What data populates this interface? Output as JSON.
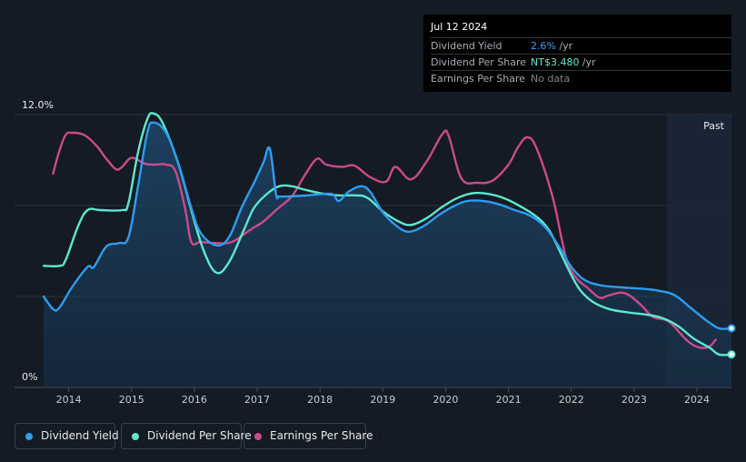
{
  "tooltip": {
    "date": "Jul 12 2024",
    "rows": [
      {
        "label": "Dividend Yield",
        "value": "2.6%",
        "unit": " /yr",
        "color": "#3aa0e8"
      },
      {
        "label": "Dividend Per Share",
        "value": "NT$3.480",
        "unit": " /yr",
        "color": "#5de8cf"
      },
      {
        "label": "Earnings Per Share",
        "value": "No data",
        "unit": "",
        "color": "#7f868e"
      }
    ]
  },
  "legend": [
    {
      "label": "Dividend Yield",
      "color": "#2d9df0"
    },
    {
      "label": "Dividend Per Share",
      "color": "#5de8cf"
    },
    {
      "label": "Earnings Per Share",
      "color": "#cb4a8a"
    }
  ],
  "chart_data": {
    "type": "line",
    "y_top_label": "12.0%",
    "y_bottom_label": "0%",
    "ylim": [
      0,
      12
    ],
    "xlim": [
      2013.6,
      2024.55
    ],
    "past_label": "Past",
    "past_start": 2023.52,
    "grid": true,
    "x_ticks": [
      "2014",
      "2015",
      "2016",
      "2017",
      "2018",
      "2019",
      "2020",
      "2021",
      "2022",
      "2023",
      "2024"
    ],
    "series": [
      {
        "name": "Dividend Yield",
        "color": "#2d9df0",
        "filled": true,
        "points": [
          [
            2013.6,
            4.0
          ],
          [
            2013.75,
            3.45
          ],
          [
            2013.85,
            3.5
          ],
          [
            2014.05,
            4.4
          ],
          [
            2014.3,
            5.3
          ],
          [
            2014.4,
            5.3
          ],
          [
            2014.6,
            6.2
          ],
          [
            2014.8,
            6.35
          ],
          [
            2014.95,
            6.6
          ],
          [
            2015.1,
            8.8
          ],
          [
            2015.25,
            11.2
          ],
          [
            2015.35,
            11.65
          ],
          [
            2015.55,
            11.2
          ],
          [
            2015.75,
            9.8
          ],
          [
            2015.95,
            7.9
          ],
          [
            2016.1,
            6.8
          ],
          [
            2016.35,
            6.25
          ],
          [
            2016.55,
            6.6
          ],
          [
            2016.75,
            7.9
          ],
          [
            2016.95,
            9.0
          ],
          [
            2017.1,
            9.9
          ],
          [
            2017.2,
            10.5
          ],
          [
            2017.3,
            8.5
          ],
          [
            2017.35,
            8.4
          ],
          [
            2017.5,
            8.4
          ],
          [
            2017.8,
            8.45
          ],
          [
            2018.0,
            8.5
          ],
          [
            2018.2,
            8.5
          ],
          [
            2018.3,
            8.2
          ],
          [
            2018.45,
            8.6
          ],
          [
            2018.65,
            8.85
          ],
          [
            2018.8,
            8.6
          ],
          [
            2019.0,
            7.7
          ],
          [
            2019.2,
            7.15
          ],
          [
            2019.4,
            6.85
          ],
          [
            2019.65,
            7.1
          ],
          [
            2019.9,
            7.6
          ],
          [
            2020.15,
            8.0
          ],
          [
            2020.35,
            8.2
          ],
          [
            2020.6,
            8.2
          ],
          [
            2020.85,
            8.05
          ],
          [
            2021.1,
            7.8
          ],
          [
            2021.35,
            7.55
          ],
          [
            2021.6,
            7.0
          ],
          [
            2021.85,
            6.0
          ],
          [
            2022.0,
            5.3
          ],
          [
            2022.2,
            4.75
          ],
          [
            2022.45,
            4.5
          ],
          [
            2022.8,
            4.4
          ],
          [
            2023.1,
            4.35
          ],
          [
            2023.4,
            4.25
          ],
          [
            2023.65,
            4.05
          ],
          [
            2023.9,
            3.5
          ],
          [
            2024.15,
            2.95
          ],
          [
            2024.35,
            2.6
          ],
          [
            2024.55,
            2.6
          ]
        ]
      },
      {
        "name": "Dividend Per Share",
        "color": "#5de8cf",
        "filled": false,
        "points": [
          [
            2013.6,
            5.35
          ],
          [
            2013.85,
            5.35
          ],
          [
            2013.95,
            5.6
          ],
          [
            2014.15,
            7.1
          ],
          [
            2014.3,
            7.8
          ],
          [
            2014.5,
            7.8
          ],
          [
            2014.85,
            7.8
          ],
          [
            2014.95,
            8.1
          ],
          [
            2015.1,
            10.3
          ],
          [
            2015.25,
            11.8
          ],
          [
            2015.35,
            12.05
          ],
          [
            2015.5,
            11.6
          ],
          [
            2015.75,
            9.8
          ],
          [
            2015.95,
            7.8
          ],
          [
            2016.15,
            6.0
          ],
          [
            2016.35,
            5.05
          ],
          [
            2016.55,
            5.5
          ],
          [
            2016.8,
            7.0
          ],
          [
            2016.95,
            7.9
          ],
          [
            2017.15,
            8.5
          ],
          [
            2017.35,
            8.85
          ],
          [
            2017.55,
            8.85
          ],
          [
            2017.75,
            8.7
          ],
          [
            2018.0,
            8.55
          ],
          [
            2018.3,
            8.45
          ],
          [
            2018.55,
            8.45
          ],
          [
            2018.75,
            8.35
          ],
          [
            2019.0,
            7.75
          ],
          [
            2019.25,
            7.3
          ],
          [
            2019.45,
            7.15
          ],
          [
            2019.7,
            7.45
          ],
          [
            2019.95,
            7.95
          ],
          [
            2020.2,
            8.35
          ],
          [
            2020.45,
            8.55
          ],
          [
            2020.7,
            8.5
          ],
          [
            2020.95,
            8.3
          ],
          [
            2021.2,
            7.95
          ],
          [
            2021.45,
            7.5
          ],
          [
            2021.65,
            6.9
          ],
          [
            2021.85,
            5.8
          ],
          [
            2022.0,
            4.95
          ],
          [
            2022.15,
            4.25
          ],
          [
            2022.35,
            3.75
          ],
          [
            2022.6,
            3.45
          ],
          [
            2022.9,
            3.3
          ],
          [
            2023.2,
            3.2
          ],
          [
            2023.45,
            3.05
          ],
          [
            2023.7,
            2.7
          ],
          [
            2023.95,
            2.15
          ],
          [
            2024.2,
            1.75
          ],
          [
            2024.35,
            1.45
          ],
          [
            2024.55,
            1.45
          ]
        ]
      },
      {
        "name": "Earnings Per Share",
        "color": "#cb4a8a",
        "filled": false,
        "points": [
          [
            2013.75,
            9.4
          ],
          [
            2013.85,
            10.4
          ],
          [
            2013.95,
            11.1
          ],
          [
            2014.05,
            11.2
          ],
          [
            2014.25,
            11.1
          ],
          [
            2014.45,
            10.6
          ],
          [
            2014.6,
            10.05
          ],
          [
            2014.75,
            9.6
          ],
          [
            2014.85,
            9.7
          ],
          [
            2015.0,
            10.1
          ],
          [
            2015.2,
            9.85
          ],
          [
            2015.35,
            9.8
          ],
          [
            2015.55,
            9.8
          ],
          [
            2015.7,
            9.5
          ],
          [
            2015.85,
            7.9
          ],
          [
            2015.95,
            6.4
          ],
          [
            2016.1,
            6.4
          ],
          [
            2016.35,
            6.35
          ],
          [
            2016.6,
            6.4
          ],
          [
            2016.9,
            6.95
          ],
          [
            2017.1,
            7.3
          ],
          [
            2017.3,
            7.8
          ],
          [
            2017.55,
            8.4
          ],
          [
            2017.75,
            9.3
          ],
          [
            2017.95,
            10.05
          ],
          [
            2018.1,
            9.8
          ],
          [
            2018.35,
            9.7
          ],
          [
            2018.55,
            9.75
          ],
          [
            2018.8,
            9.25
          ],
          [
            2019.05,
            9.05
          ],
          [
            2019.2,
            9.7
          ],
          [
            2019.45,
            9.15
          ],
          [
            2019.7,
            9.95
          ],
          [
            2019.95,
            11.15
          ],
          [
            2020.05,
            11.05
          ],
          [
            2020.25,
            9.2
          ],
          [
            2020.5,
            9.0
          ],
          [
            2020.75,
            9.1
          ],
          [
            2021.0,
            9.8
          ],
          [
            2021.15,
            10.55
          ],
          [
            2021.3,
            11.0
          ],
          [
            2021.45,
            10.5
          ],
          [
            2021.7,
            8.4
          ],
          [
            2021.85,
            6.5
          ],
          [
            2021.95,
            5.4
          ],
          [
            2022.1,
            4.75
          ],
          [
            2022.25,
            4.4
          ],
          [
            2022.45,
            3.95
          ],
          [
            2022.6,
            4.05
          ],
          [
            2022.85,
            4.15
          ],
          [
            2023.1,
            3.65
          ],
          [
            2023.3,
            3.1
          ],
          [
            2023.55,
            2.9
          ],
          [
            2023.85,
            2.05
          ],
          [
            2024.05,
            1.75
          ],
          [
            2024.2,
            1.8
          ],
          [
            2024.3,
            2.1
          ]
        ]
      }
    ]
  }
}
